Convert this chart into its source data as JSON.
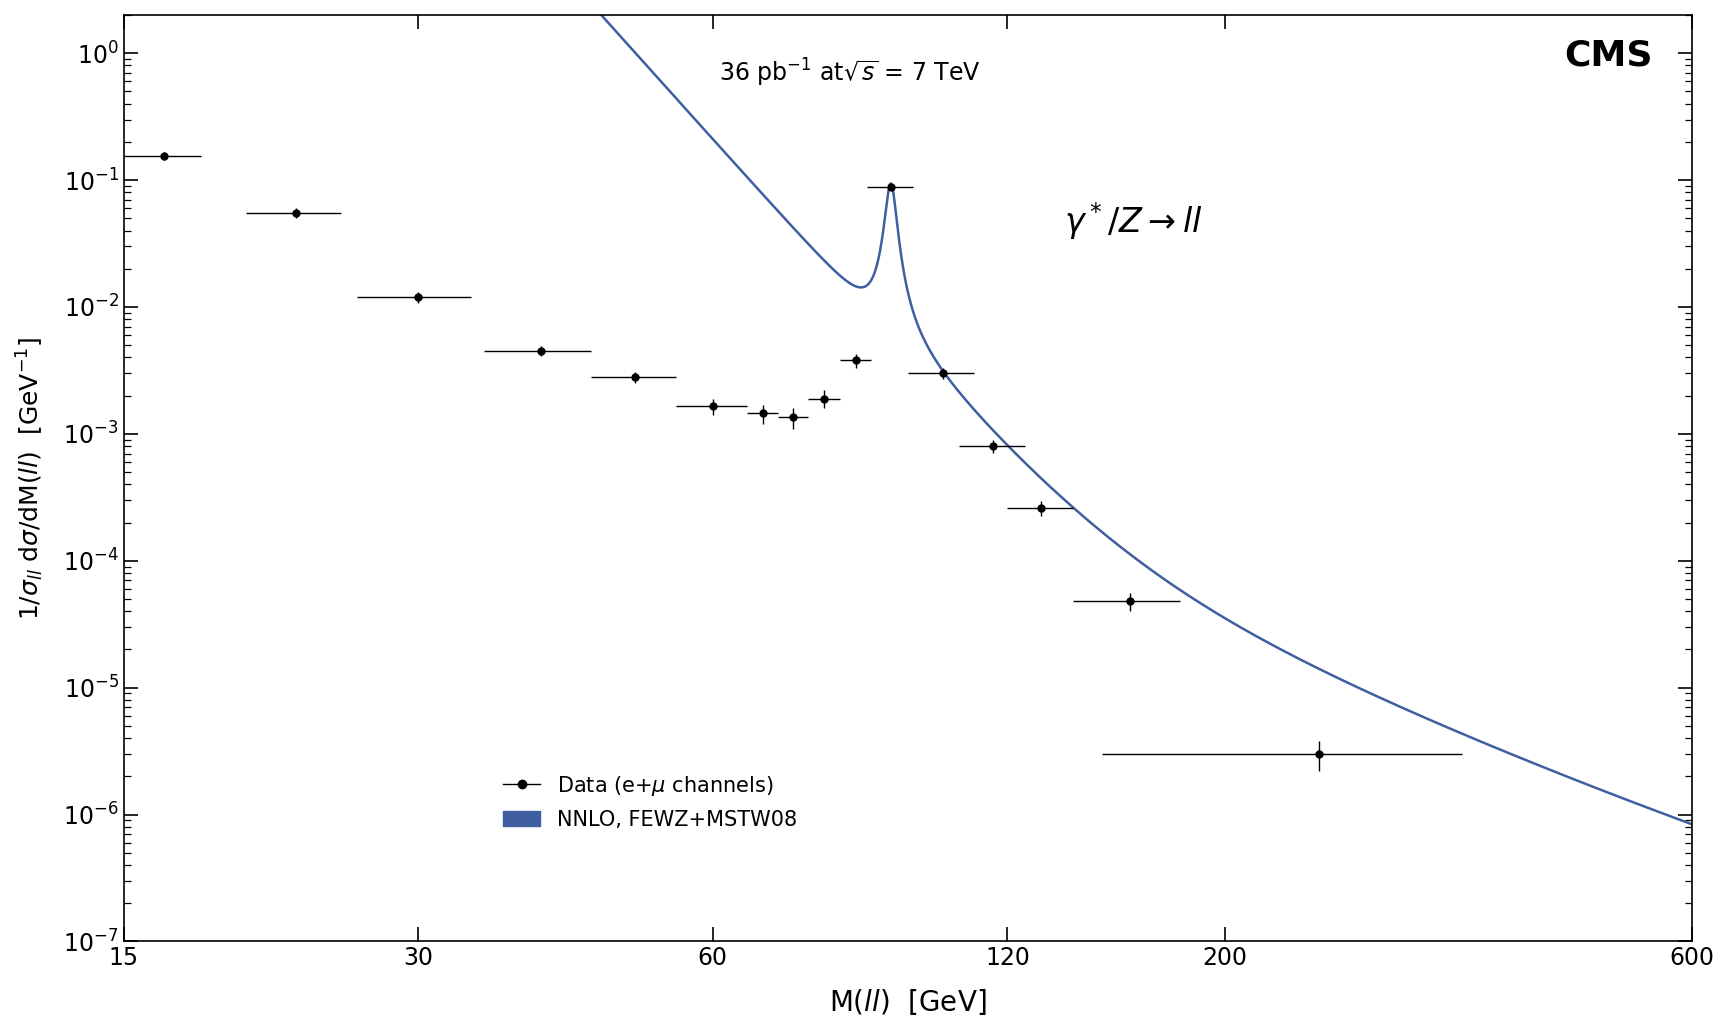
{
  "title_cms": "CMS",
  "xlim": [
    15,
    600
  ],
  "ylim": [
    1e-07,
    2.0
  ],
  "line_color": "#3F5FA0",
  "data_x": [
    16.5,
    22.5,
    30.0,
    40.0,
    50.0,
    60.0,
    67.5,
    72.5,
    78.0,
    84.0,
    91.2,
    103.0,
    116.0,
    130.0,
    160.0,
    250.0
  ],
  "data_y": [
    0.155,
    0.055,
    0.012,
    0.0045,
    0.0028,
    0.00165,
    0.00145,
    0.00135,
    0.0019,
    0.0038,
    0.088,
    0.003,
    0.0008,
    0.00026,
    4.8e-05,
    3e-06
  ],
  "data_xerr_lo": [
    1.5,
    2.5,
    4.0,
    5.0,
    5.0,
    5.0,
    2.5,
    2.5,
    3.0,
    3.0,
    5.0,
    8.0,
    9.0,
    10.0,
    20.0,
    100.0
  ],
  "data_xerr_hi": [
    1.5,
    2.5,
    4.0,
    5.0,
    5.0,
    5.0,
    2.5,
    2.5,
    3.0,
    3.0,
    5.0,
    8.0,
    9.0,
    10.0,
    20.0,
    100.0
  ],
  "data_yerr_lo": [
    0.01,
    0.005,
    0.0012,
    0.0004,
    0.0003,
    0.00025,
    0.00025,
    0.00025,
    0.0003,
    0.0005,
    0.004,
    0.0003,
    9e-05,
    3.5e-05,
    8e-06,
    8e-07
  ],
  "data_yerr_hi": [
    0.01,
    0.005,
    0.0012,
    0.0004,
    0.0003,
    0.00025,
    0.00025,
    0.00025,
    0.0003,
    0.0005,
    0.004,
    0.0003,
    9e-05,
    3.5e-05,
    8e-06,
    8e-07
  ],
  "xticks": [
    15,
    30,
    60,
    120,
    200,
    600
  ],
  "xticklabels": [
    "15",
    "30",
    "60",
    "120",
    "200",
    "600"
  ]
}
